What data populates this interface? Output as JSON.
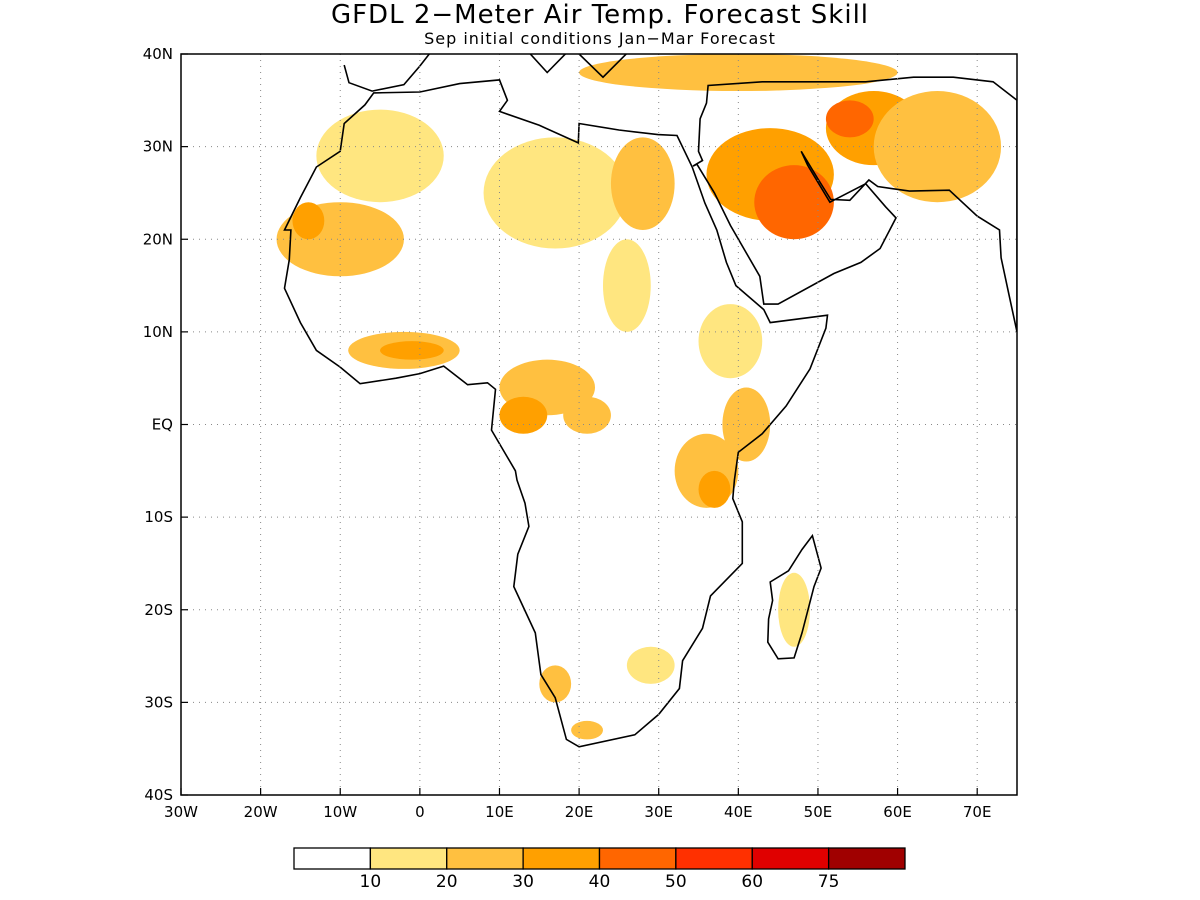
{
  "title": "GFDL 2−Meter Air Temp. Forecast Skill",
  "subtitle": "Sep initial conditions  Jan−Mar Forecast",
  "map": {
    "lon_range": [
      -30,
      75
    ],
    "lat_range": [
      -40,
      40
    ],
    "lon_ticks": [
      {
        "value": -30,
        "label": "30W"
      },
      {
        "value": -20,
        "label": "20W"
      },
      {
        "value": -10,
        "label": "10W"
      },
      {
        "value": 0,
        "label": "0"
      },
      {
        "value": 10,
        "label": "10E"
      },
      {
        "value": 20,
        "label": "20E"
      },
      {
        "value": 30,
        "label": "30E"
      },
      {
        "value": 40,
        "label": "40E"
      },
      {
        "value": 50,
        "label": "50E"
      },
      {
        "value": 60,
        "label": "60E"
      },
      {
        "value": 70,
        "label": "70E"
      }
    ],
    "lat_ticks": [
      {
        "value": 40,
        "label": "40N"
      },
      {
        "value": 30,
        "label": "30N"
      },
      {
        "value": 20,
        "label": "20N"
      },
      {
        "value": 10,
        "label": "10N"
      },
      {
        "value": 0,
        "label": "EQ"
      },
      {
        "value": -10,
        "label": "10S"
      },
      {
        "value": -20,
        "label": "20S"
      },
      {
        "value": -30,
        "label": "30S"
      },
      {
        "value": -40,
        "label": "40S"
      }
    ],
    "gridlines": "dotted"
  },
  "colorbar": {
    "colors": [
      "#ffffff",
      "#ffe680",
      "#ffc040",
      "#ffa000",
      "#ff6600",
      "#ff3000",
      "#e00000",
      "#a00000"
    ],
    "labels": [
      "10",
      "20",
      "30",
      "40",
      "50",
      "60",
      "75"
    ]
  },
  "regions": [
    {
      "level": 1,
      "lon": -5,
      "lat": 29,
      "rlon": 8,
      "rlat": 5
    },
    {
      "level": 1,
      "lon": 17,
      "lat": 25,
      "rlon": 9,
      "rlat": 6
    },
    {
      "level": 2,
      "lon": -10,
      "lat": 20,
      "rlon": 8,
      "rlat": 4
    },
    {
      "level": 3,
      "lon": -14,
      "lat": 22,
      "rlon": 2,
      "rlat": 2
    },
    {
      "level": 2,
      "lon": 28,
      "lat": 26,
      "rlon": 4,
      "rlat": 5
    },
    {
      "level": 1,
      "lon": 26,
      "lat": 15,
      "rlon": 3,
      "rlat": 5
    },
    {
      "level": 3,
      "lon": 44,
      "lat": 27,
      "rlon": 8,
      "rlat": 5
    },
    {
      "level": 4,
      "lon": 47,
      "lat": 24,
      "rlon": 5,
      "rlat": 4
    },
    {
      "level": 3,
      "lon": 57,
      "lat": 32,
      "rlon": 6,
      "rlat": 4
    },
    {
      "level": 4,
      "lon": 54,
      "lat": 33,
      "rlon": 3,
      "rlat": 2
    },
    {
      "level": 2,
      "lon": 65,
      "lat": 30,
      "rlon": 8,
      "rlat": 6
    },
    {
      "level": 2,
      "lon": 40,
      "lat": 38,
      "rlon": 20,
      "rlat": 2
    },
    {
      "level": 2,
      "lon": -2,
      "lat": 8,
      "rlon": 7,
      "rlat": 2
    },
    {
      "level": 3,
      "lon": -1,
      "lat": 8,
      "rlon": 4,
      "rlat": 1
    },
    {
      "level": 2,
      "lon": 16,
      "lat": 4,
      "rlon": 6,
      "rlat": 3
    },
    {
      "level": 3,
      "lon": 13,
      "lat": 1,
      "rlon": 3,
      "rlat": 2
    },
    {
      "level": 2,
      "lon": 21,
      "lat": 1,
      "rlon": 3,
      "rlat": 2
    },
    {
      "level": 2,
      "lon": 36,
      "lat": -5,
      "rlon": 4,
      "rlat": 4
    },
    {
      "level": 3,
      "lon": 37,
      "lat": -7,
      "rlon": 2,
      "rlat": 2
    },
    {
      "level": 2,
      "lon": 41,
      "lat": 0,
      "rlon": 3,
      "rlat": 4
    },
    {
      "level": 1,
      "lon": 39,
      "lat": 9,
      "rlon": 4,
      "rlat": 4
    },
    {
      "level": 1,
      "lon": 47,
      "lat": -20,
      "rlon": 2,
      "rlat": 4
    },
    {
      "level": 1,
      "lon": 29,
      "lat": -26,
      "rlon": 3,
      "rlat": 2
    },
    {
      "level": 2,
      "lon": 21,
      "lat": -33,
      "rlon": 2,
      "rlat": 1
    },
    {
      "level": 2,
      "lon": 17,
      "lat": -28,
      "rlon": 2,
      "rlat": 2
    }
  ]
}
